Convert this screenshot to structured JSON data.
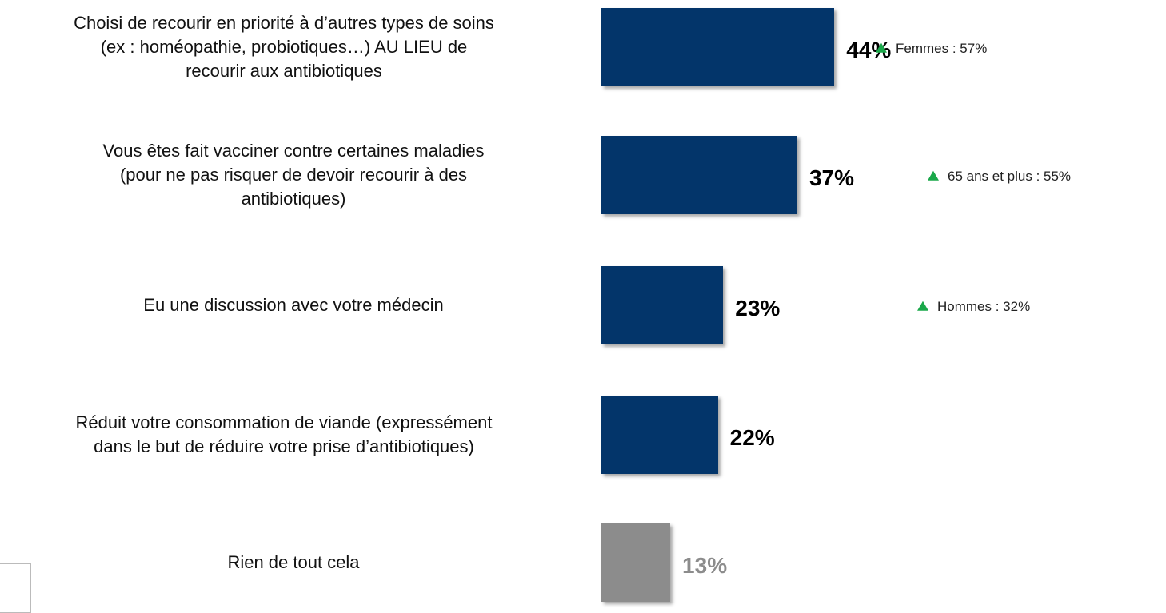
{
  "chart_data": {
    "type": "bar",
    "orientation": "horizontal",
    "categories": [
      "Choisi de recourir en priorité à d’autres types de soins\n(ex : homéopathie, probiotiques…) AU LIEU de\nrecourir aux antibiotiques",
      "Vous êtes fait vacciner contre certaines maladies\n(pour ne pas risquer de devoir recourir à des\nantibiotiques)",
      "Eu une discussion avec votre médecin",
      "Réduit votre consommation de viande (expressément\ndans le but de réduire votre prise d’antibiotiques)",
      "Rien de tout cela"
    ],
    "values": [
      44,
      37,
      23,
      22,
      13
    ],
    "value_labels": [
      "44%",
      "37%",
      "23%",
      "22%",
      "13%"
    ],
    "colors": [
      "#03356a",
      "#03356a",
      "#03356a",
      "#03356a",
      "#8c8c8c"
    ],
    "label_colors": [
      "#000000",
      "#000000",
      "#000000",
      "#000000",
      "#8c8c8c"
    ],
    "annotations": [
      "Femmes : 57%",
      "65 ans et plus : 55%",
      "Hommes : 32%",
      null,
      null
    ],
    "annotation_color": "#1aa84a"
  }
}
